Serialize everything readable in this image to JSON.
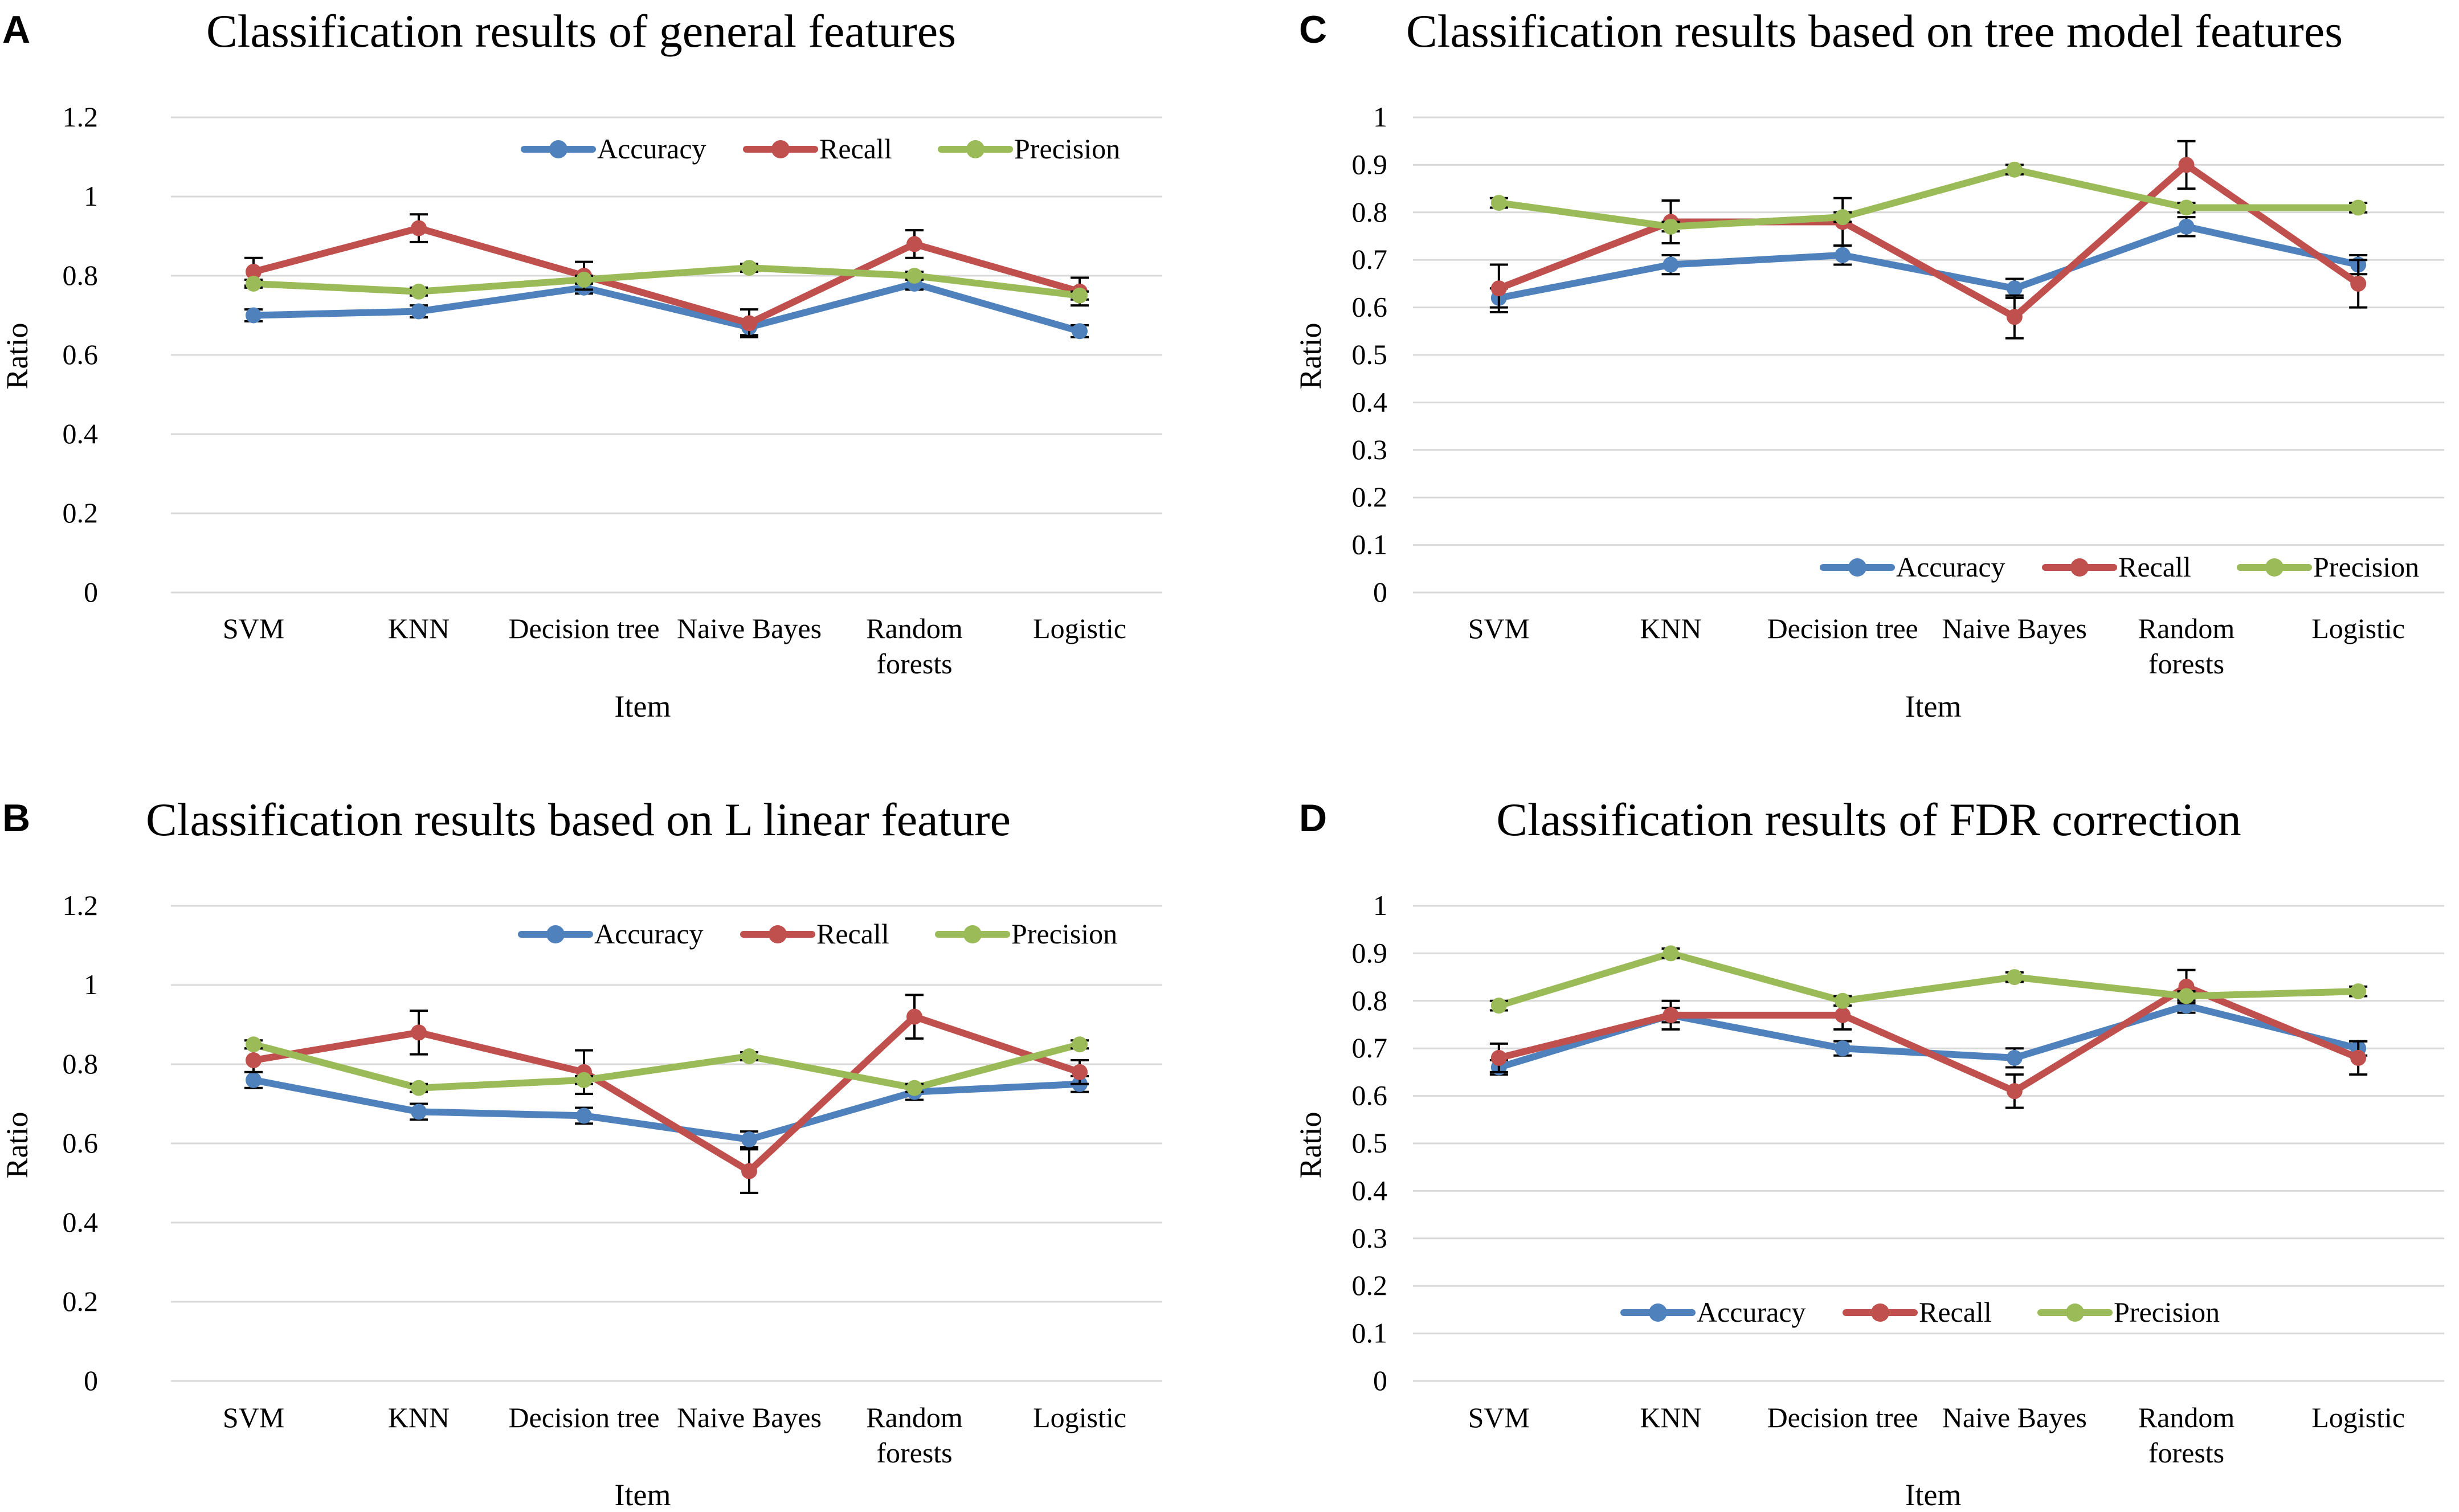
{
  "figure": {
    "panels": [
      "A",
      "C",
      "B",
      "D"
    ]
  },
  "chart_data": [
    {
      "panel": "A",
      "type": "line",
      "title": "Classification results of general features",
      "xlabel": "Item",
      "ylabel": "Ratio",
      "ylim": [
        0,
        1.2
      ],
      "ytick_step": 0.2,
      "yticks": [
        "0",
        "0.2",
        "0.4",
        "0.6",
        "0.8",
        "1",
        "1.2"
      ],
      "grid": true,
      "legend_position": "top-right",
      "categories": [
        [
          "SVM"
        ],
        [
          "KNN"
        ],
        [
          "Decision tree"
        ],
        [
          "Naive Bayes"
        ],
        [
          "Random",
          "forests"
        ],
        [
          "Logistic"
        ]
      ],
      "series": [
        {
          "name": "Accuracy",
          "color": "#4F81BD",
          "values": [
            0.7,
            0.71,
            0.77,
            0.67,
            0.78,
            0.66
          ],
          "errors": [
            0.015,
            0.015,
            0.015,
            0.02,
            0.015,
            0.015
          ]
        },
        {
          "name": "Recall",
          "color": "#C0504D",
          "values": [
            0.81,
            0.92,
            0.8,
            0.68,
            0.88,
            0.76
          ],
          "errors": [
            0.035,
            0.035,
            0.035,
            0.035,
            0.035,
            0.035
          ]
        },
        {
          "name": "Precision",
          "color": "#9BBB59",
          "values": [
            0.78,
            0.76,
            0.79,
            0.82,
            0.8,
            0.75
          ],
          "errors": [
            0.01,
            0.01,
            0.01,
            0.01,
            0.01,
            0.01
          ]
        }
      ]
    },
    {
      "panel": "C",
      "type": "line",
      "title": "Classification results based on tree model features",
      "xlabel": "Item",
      "ylabel": "Ratio",
      "ylim": [
        0,
        1
      ],
      "ytick_step": 0.1,
      "yticks": [
        "0",
        "0.1",
        "0.2",
        "0.3",
        "0.4",
        "0.5",
        "0.6",
        "0.7",
        "0.8",
        "0.9",
        "1"
      ],
      "grid": true,
      "legend_position": "bottom-right",
      "categories": [
        [
          "SVM"
        ],
        [
          "KNN"
        ],
        [
          "Decision tree"
        ],
        [
          "Naive Bayes"
        ],
        [
          "Random",
          "forests"
        ],
        [
          "Logistic"
        ]
      ],
      "series": [
        {
          "name": "Accuracy",
          "color": "#4F81BD",
          "values": [
            0.62,
            0.69,
            0.71,
            0.64,
            0.77,
            0.69
          ],
          "errors": [
            0.02,
            0.02,
            0.02,
            0.02,
            0.02,
            0.02
          ]
        },
        {
          "name": "Recall",
          "color": "#C0504D",
          "values": [
            0.64,
            0.78,
            0.78,
            0.58,
            0.9,
            0.65
          ],
          "errors": [
            0.05,
            0.045,
            0.05,
            0.045,
            0.05,
            0.05
          ]
        },
        {
          "name": "Precision",
          "color": "#9BBB59",
          "values": [
            0.82,
            0.77,
            0.79,
            0.89,
            0.81,
            0.81
          ],
          "errors": [
            0.01,
            0.01,
            0.01,
            0.01,
            0.01,
            0.01
          ]
        }
      ]
    },
    {
      "panel": "B",
      "type": "line",
      "title": "Classification results based on L linear feature",
      "xlabel": "Item",
      "ylabel": "Ratio",
      "ylim": [
        0,
        1.2
      ],
      "ytick_step": 0.2,
      "yticks": [
        "0",
        "0.2",
        "0.4",
        "0.6",
        "0.8",
        "1",
        "1.2"
      ],
      "grid": true,
      "legend_position": "top-right",
      "categories": [
        [
          "SVM"
        ],
        [
          "KNN"
        ],
        [
          "Decision tree"
        ],
        [
          "Naive Bayes"
        ],
        [
          "Random",
          "forests"
        ],
        [
          "Logistic"
        ]
      ],
      "series": [
        {
          "name": "Accuracy",
          "color": "#4F81BD",
          "values": [
            0.76,
            0.68,
            0.67,
            0.61,
            0.73,
            0.75
          ],
          "errors": [
            0.02,
            0.02,
            0.02,
            0.02,
            0.02,
            0.02
          ]
        },
        {
          "name": "Recall",
          "color": "#C0504D",
          "values": [
            0.81,
            0.88,
            0.78,
            0.53,
            0.92,
            0.78
          ],
          "errors": [
            0.03,
            0.055,
            0.055,
            0.055,
            0.055,
            0.03
          ]
        },
        {
          "name": "Precision",
          "color": "#9BBB59",
          "values": [
            0.85,
            0.74,
            0.76,
            0.82,
            0.74,
            0.85
          ],
          "errors": [
            0.01,
            0.01,
            0.01,
            0.01,
            0.01,
            0.01
          ]
        }
      ]
    },
    {
      "panel": "D",
      "type": "line",
      "title": "Classification results of FDR correction",
      "xlabel": "Item",
      "ylabel": "Ratio",
      "ylim": [
        0,
        1
      ],
      "ytick_step": 0.1,
      "yticks": [
        "0",
        "0.1",
        "0.2",
        "0.3",
        "0.4",
        "0.5",
        "0.6",
        "0.7",
        "0.8",
        "0.9",
        "1"
      ],
      "grid": true,
      "legend_position": "bottom-center",
      "categories": [
        [
          "SVM"
        ],
        [
          "KNN"
        ],
        [
          "Decision tree"
        ],
        [
          "Naive Bayes"
        ],
        [
          "Random",
          "forests"
        ],
        [
          "Logistic"
        ]
      ],
      "series": [
        {
          "name": "Accuracy",
          "color": "#4F81BD",
          "values": [
            0.66,
            0.77,
            0.7,
            0.68,
            0.79,
            0.7
          ],
          "errors": [
            0.015,
            0.015,
            0.015,
            0.02,
            0.015,
            0.015
          ]
        },
        {
          "name": "Recall",
          "color": "#C0504D",
          "values": [
            0.68,
            0.77,
            0.77,
            0.61,
            0.83,
            0.68
          ],
          "errors": [
            0.03,
            0.03,
            0.03,
            0.035,
            0.035,
            0.035
          ]
        },
        {
          "name": "Precision",
          "color": "#9BBB59",
          "values": [
            0.79,
            0.9,
            0.8,
            0.85,
            0.81,
            0.82
          ],
          "errors": [
            0.01,
            0.01,
            0.01,
            0.01,
            0.01,
            0.01
          ]
        }
      ]
    }
  ]
}
